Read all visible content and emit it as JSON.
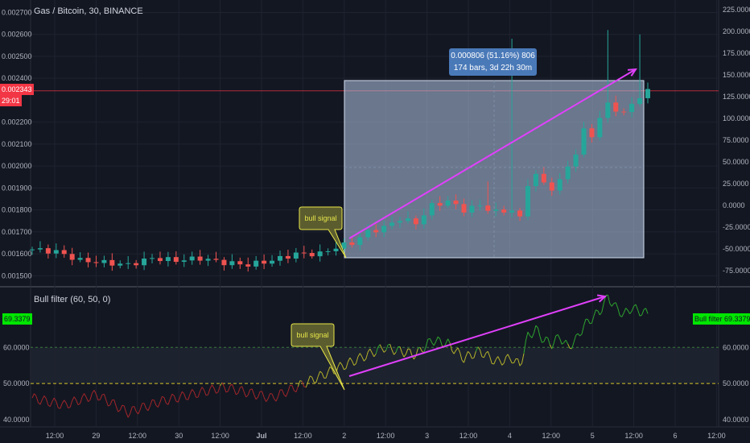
{
  "header": {
    "symbol_title": "Gas / Bitcoin, 30, BINANCE"
  },
  "price_axis_left": {
    "ticks": [
      "0.002700",
      "0.002600",
      "0.002500",
      "0.002400",
      "0.002200",
      "0.002100",
      "0.002000",
      "0.001900",
      "0.001800",
      "0.001700",
      "0.001600",
      "0.001500"
    ],
    "last_price": "0.002343",
    "countdown": "29:01",
    "last_price_color": "#f23645"
  },
  "percent_axis_right": {
    "ticks": [
      "225.0000",
      "200.0000",
      "175.0000",
      "150.0000",
      "125.0000",
      "100.0000",
      "75.0000",
      "50.0000",
      "25.0000",
      "0.0000",
      "-25.0000",
      "-50.0000",
      "-75.0000"
    ]
  },
  "measure_tooltip": {
    "line1": "0.000806 (51.16%) 806",
    "line2": "174 bars, 3d 22h 30m",
    "color": "#4a79b8"
  },
  "annotations": {
    "upper_callout": "bull signal",
    "lower_callout": "bull signal",
    "callout_color": "#e8e64a",
    "arrow_color": "#e040fb"
  },
  "indicator": {
    "title": "Bull filter (60, 50, 0)",
    "current_value": "69.3379",
    "right_label": "Bull filter",
    "ticks_left": [
      "60.0000",
      "50.0000",
      "40.0000"
    ],
    "ticks_right": [
      "60.0000",
      "50.0000",
      "40.0000"
    ],
    "accent_color": "#00e600",
    "levels": [
      60,
      50
    ]
  },
  "time_axis": {
    "labels": [
      "12:00",
      "29",
      "12:00",
      "30",
      "12:00",
      "Jul",
      "12:00",
      "2",
      "12:00",
      "3",
      "12:00",
      "4",
      "12:00",
      "5",
      "12:00",
      "6",
      "12:00"
    ]
  },
  "chart_data": {
    "type": "candlestick",
    "symbol": "Gas / Bitcoin",
    "interval": "30",
    "exchange": "BINANCE",
    "price_range": [
      0.00145,
      0.00272
    ],
    "last_price": 0.002343,
    "measure": {
      "change": 0.000806,
      "change_percent": 51.16,
      "ticks": 806,
      "bars": 174,
      "duration": "3d 22h 30m"
    },
    "price_path": [
      [
        0,
        0.00162
      ],
      [
        3,
        0.00161
      ],
      [
        6,
        0.00157
      ],
      [
        9,
        0.00156
      ],
      [
        12,
        0.00155
      ],
      [
        15,
        0.00158
      ],
      [
        18,
        0.00157
      ],
      [
        21,
        0.00158
      ],
      [
        24,
        0.00156
      ],
      [
        27,
        0.00155
      ],
      [
        30,
        0.00157
      ],
      [
        33,
        0.0016
      ],
      [
        36,
        0.0016
      ],
      [
        38,
        0.00163
      ],
      [
        40,
        0.00165
      ],
      [
        42,
        0.0017
      ],
      [
        44,
        0.00172
      ],
      [
        46,
        0.00176
      ],
      [
        48,
        0.00174
      ],
      [
        50,
        0.00182
      ],
      [
        52,
        0.00184
      ],
      [
        54,
        0.0018
      ],
      [
        56,
        0.00182
      ],
      [
        58,
        0.00179
      ],
      [
        60,
        0.0018
      ],
      [
        61,
        0.00176
      ],
      [
        62,
        0.00192
      ],
      [
        63,
        0.00196
      ],
      [
        64,
        0.00192
      ],
      [
        65,
        0.0019
      ],
      [
        66,
        0.00193
      ],
      [
        67,
        0.002
      ],
      [
        68,
        0.00206
      ],
      [
        69,
        0.00216
      ],
      [
        70,
        0.00214
      ],
      [
        71,
        0.00222
      ],
      [
        72,
        0.00228
      ],
      [
        73,
        0.00226
      ],
      [
        74,
        0.00224
      ],
      [
        75,
        0.00228
      ],
      [
        76,
        0.00232
      ],
      [
        77,
        0.00234
      ]
    ],
    "wicks": [
      [
        72,
        0.00262
      ],
      [
        76,
        0.0026
      ],
      [
        60,
        0.00258
      ],
      [
        57,
        0.00193
      ]
    ],
    "indicator_series": {
      "name": "Bull filter (60, 50, 0)",
      "range": [
        38,
        75
      ],
      "levels": [
        60,
        50
      ],
      "points": [
        [
          0,
          46
        ],
        [
          4,
          44
        ],
        [
          8,
          47
        ],
        [
          12,
          42
        ],
        [
          16,
          45
        ],
        [
          20,
          47
        ],
        [
          24,
          49
        ],
        [
          28,
          47
        ],
        [
          30,
          46
        ],
        [
          32,
          48
        ],
        [
          34,
          50
        ],
        [
          36,
          52
        ],
        [
          38,
          54
        ],
        [
          40,
          56
        ],
        [
          42,
          58
        ],
        [
          44,
          60
        ],
        [
          46,
          59
        ],
        [
          48,
          58
        ],
        [
          50,
          62
        ],
        [
          52,
          61
        ],
        [
          54,
          57
        ],
        [
          56,
          59
        ],
        [
          58,
          56
        ],
        [
          60,
          57
        ],
        [
          61,
          55
        ],
        [
          62,
          63
        ],
        [
          63,
          65
        ],
        [
          64,
          62
        ],
        [
          65,
          61
        ],
        [
          66,
          63
        ],
        [
          67,
          60
        ],
        [
          68,
          62
        ],
        [
          69,
          66
        ],
        [
          70,
          68
        ],
        [
          71,
          70
        ],
        [
          72,
          74
        ],
        [
          73,
          71
        ],
        [
          74,
          69
        ],
        [
          75,
          71
        ],
        [
          76,
          70
        ],
        [
          77,
          69.3379
        ]
      ]
    }
  }
}
